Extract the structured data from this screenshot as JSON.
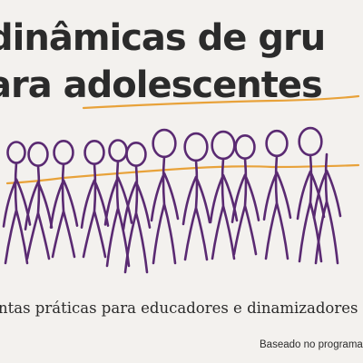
{
  "cover": {
    "title_line1": "dinâmicas de gru",
    "title_line2": "ara adolescentes",
    "subtitle": "ntas práticas para educadores e dinamizadores",
    "credit": "Baseado no programa"
  },
  "colors": {
    "background": "#f3f1ee",
    "text": "#2b2b2b",
    "figures": "#5a2a72",
    "accent_line": "#e8a23a"
  },
  "illustration": {
    "figure_count": 14,
    "icon": "stick-figures-group-illustration"
  }
}
